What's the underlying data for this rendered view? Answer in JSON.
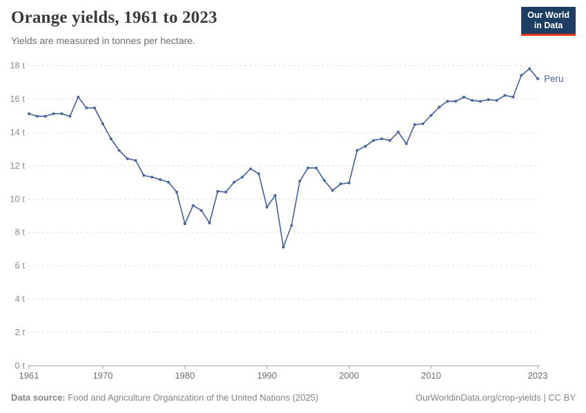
{
  "header": {
    "title": "Orange yields, 1961 to 2023",
    "subtitle": "Yields are measured in tonnes per hectare."
  },
  "logo": {
    "line1": "Our World",
    "line2": "in Data",
    "bg_color": "#1d3d63",
    "accent_color": "#e63912"
  },
  "chart_data": {
    "type": "line",
    "title": "Orange yields, 1961 to 2023",
    "subtitle": "Yields are measured in tonnes per hectare.",
    "unit": "tonnes per hectare",
    "ylim": [
      0,
      18
    ],
    "ytick_step": 2,
    "ytick_suffix": " t",
    "x_ticks": [
      1961,
      1970,
      1980,
      1990,
      2000,
      2010,
      2023
    ],
    "grid": true,
    "legend_position": "end-of-line",
    "series": [
      {
        "name": "Peru",
        "color": "#4a66a0",
        "x": [
          1961,
          1962,
          1963,
          1964,
          1965,
          1966,
          1967,
          1968,
          1969,
          1970,
          1971,
          1972,
          1973,
          1974,
          1975,
          1976,
          1977,
          1978,
          1979,
          1980,
          1981,
          1982,
          1983,
          1984,
          1985,
          1986,
          1987,
          1988,
          1989,
          1990,
          1991,
          1992,
          1993,
          1994,
          1995,
          1996,
          1997,
          1998,
          1999,
          2000,
          2001,
          2002,
          2003,
          2004,
          2005,
          2006,
          2007,
          2008,
          2009,
          2010,
          2011,
          2012,
          2013,
          2014,
          2015,
          2016,
          2017,
          2018,
          2019,
          2020,
          2021,
          2022,
          2023
        ],
        "values": [
          15.1,
          14.95,
          14.95,
          15.1,
          15.1,
          14.95,
          16.1,
          15.45,
          15.45,
          14.5,
          13.6,
          12.9,
          12.4,
          12.3,
          11.4,
          11.3,
          11.15,
          11.0,
          10.4,
          8.5,
          9.6,
          9.3,
          8.55,
          10.45,
          10.4,
          11.0,
          11.3,
          11.8,
          11.5,
          9.5,
          10.2,
          7.1,
          8.4,
          11.05,
          11.85,
          11.85,
          11.1,
          10.5,
          10.9,
          10.95,
          12.9,
          13.15,
          13.5,
          13.6,
          13.5,
          14.0,
          13.3,
          14.45,
          14.5,
          15.0,
          15.5,
          15.85,
          15.85,
          16.1,
          15.9,
          15.85,
          15.95,
          15.9,
          16.2,
          16.1,
          17.4,
          17.8,
          17.2
        ]
      }
    ]
  },
  "footer": {
    "source_label": "Data source:",
    "source_text": " Food and Agriculture Organization of the United Nations (2025)",
    "right_text": "OurWorldinData.org/crop-yields | CC BY"
  }
}
